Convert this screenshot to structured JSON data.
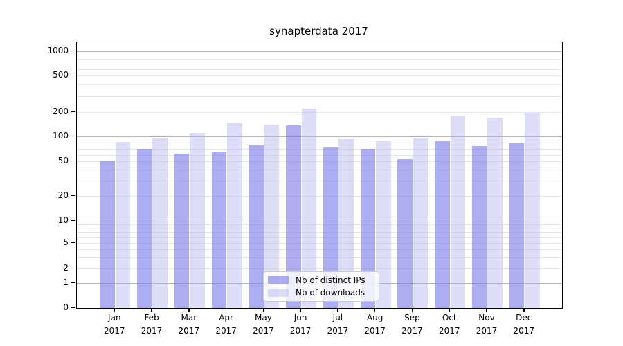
{
  "title": "synapterdata 2017",
  "chart_data": {
    "type": "bar",
    "title": "synapterdata 2017",
    "categories": [
      "Jan 2017",
      "Feb 2017",
      "Mar 2017",
      "Apr 2017",
      "May 2017",
      "Jun 2017",
      "Jul 2017",
      "Aug 2017",
      "Sep 2017",
      "Oct 2017",
      "Nov 2017",
      "Dec 2017"
    ],
    "series": [
      {
        "name": "Nb of distinct IPs",
        "color": "#7b7be8",
        "values": [
          51,
          70,
          62,
          64,
          78,
          137,
          73,
          70,
          53,
          88,
          77,
          83
        ]
      },
      {
        "name": "Nb of downloads",
        "color": "#b4b4ef",
        "values": [
          85,
          97,
          110,
          145,
          140,
          220,
          93,
          88,
          96,
          176,
          170,
          197
        ]
      }
    ],
    "yticks": [
      0,
      1,
      2,
      5,
      10,
      20,
      50,
      100,
      200,
      500,
      1000
    ],
    "yscale": "symlog",
    "ylim": [
      0,
      1000
    ],
    "xlabel": "",
    "ylabel": "",
    "grid": true,
    "legend_position": "lower center",
    "colors": {
      "major_grid": "#b4b4b4",
      "minor_grid": "#e7e7e7",
      "axis": "#000000"
    }
  }
}
